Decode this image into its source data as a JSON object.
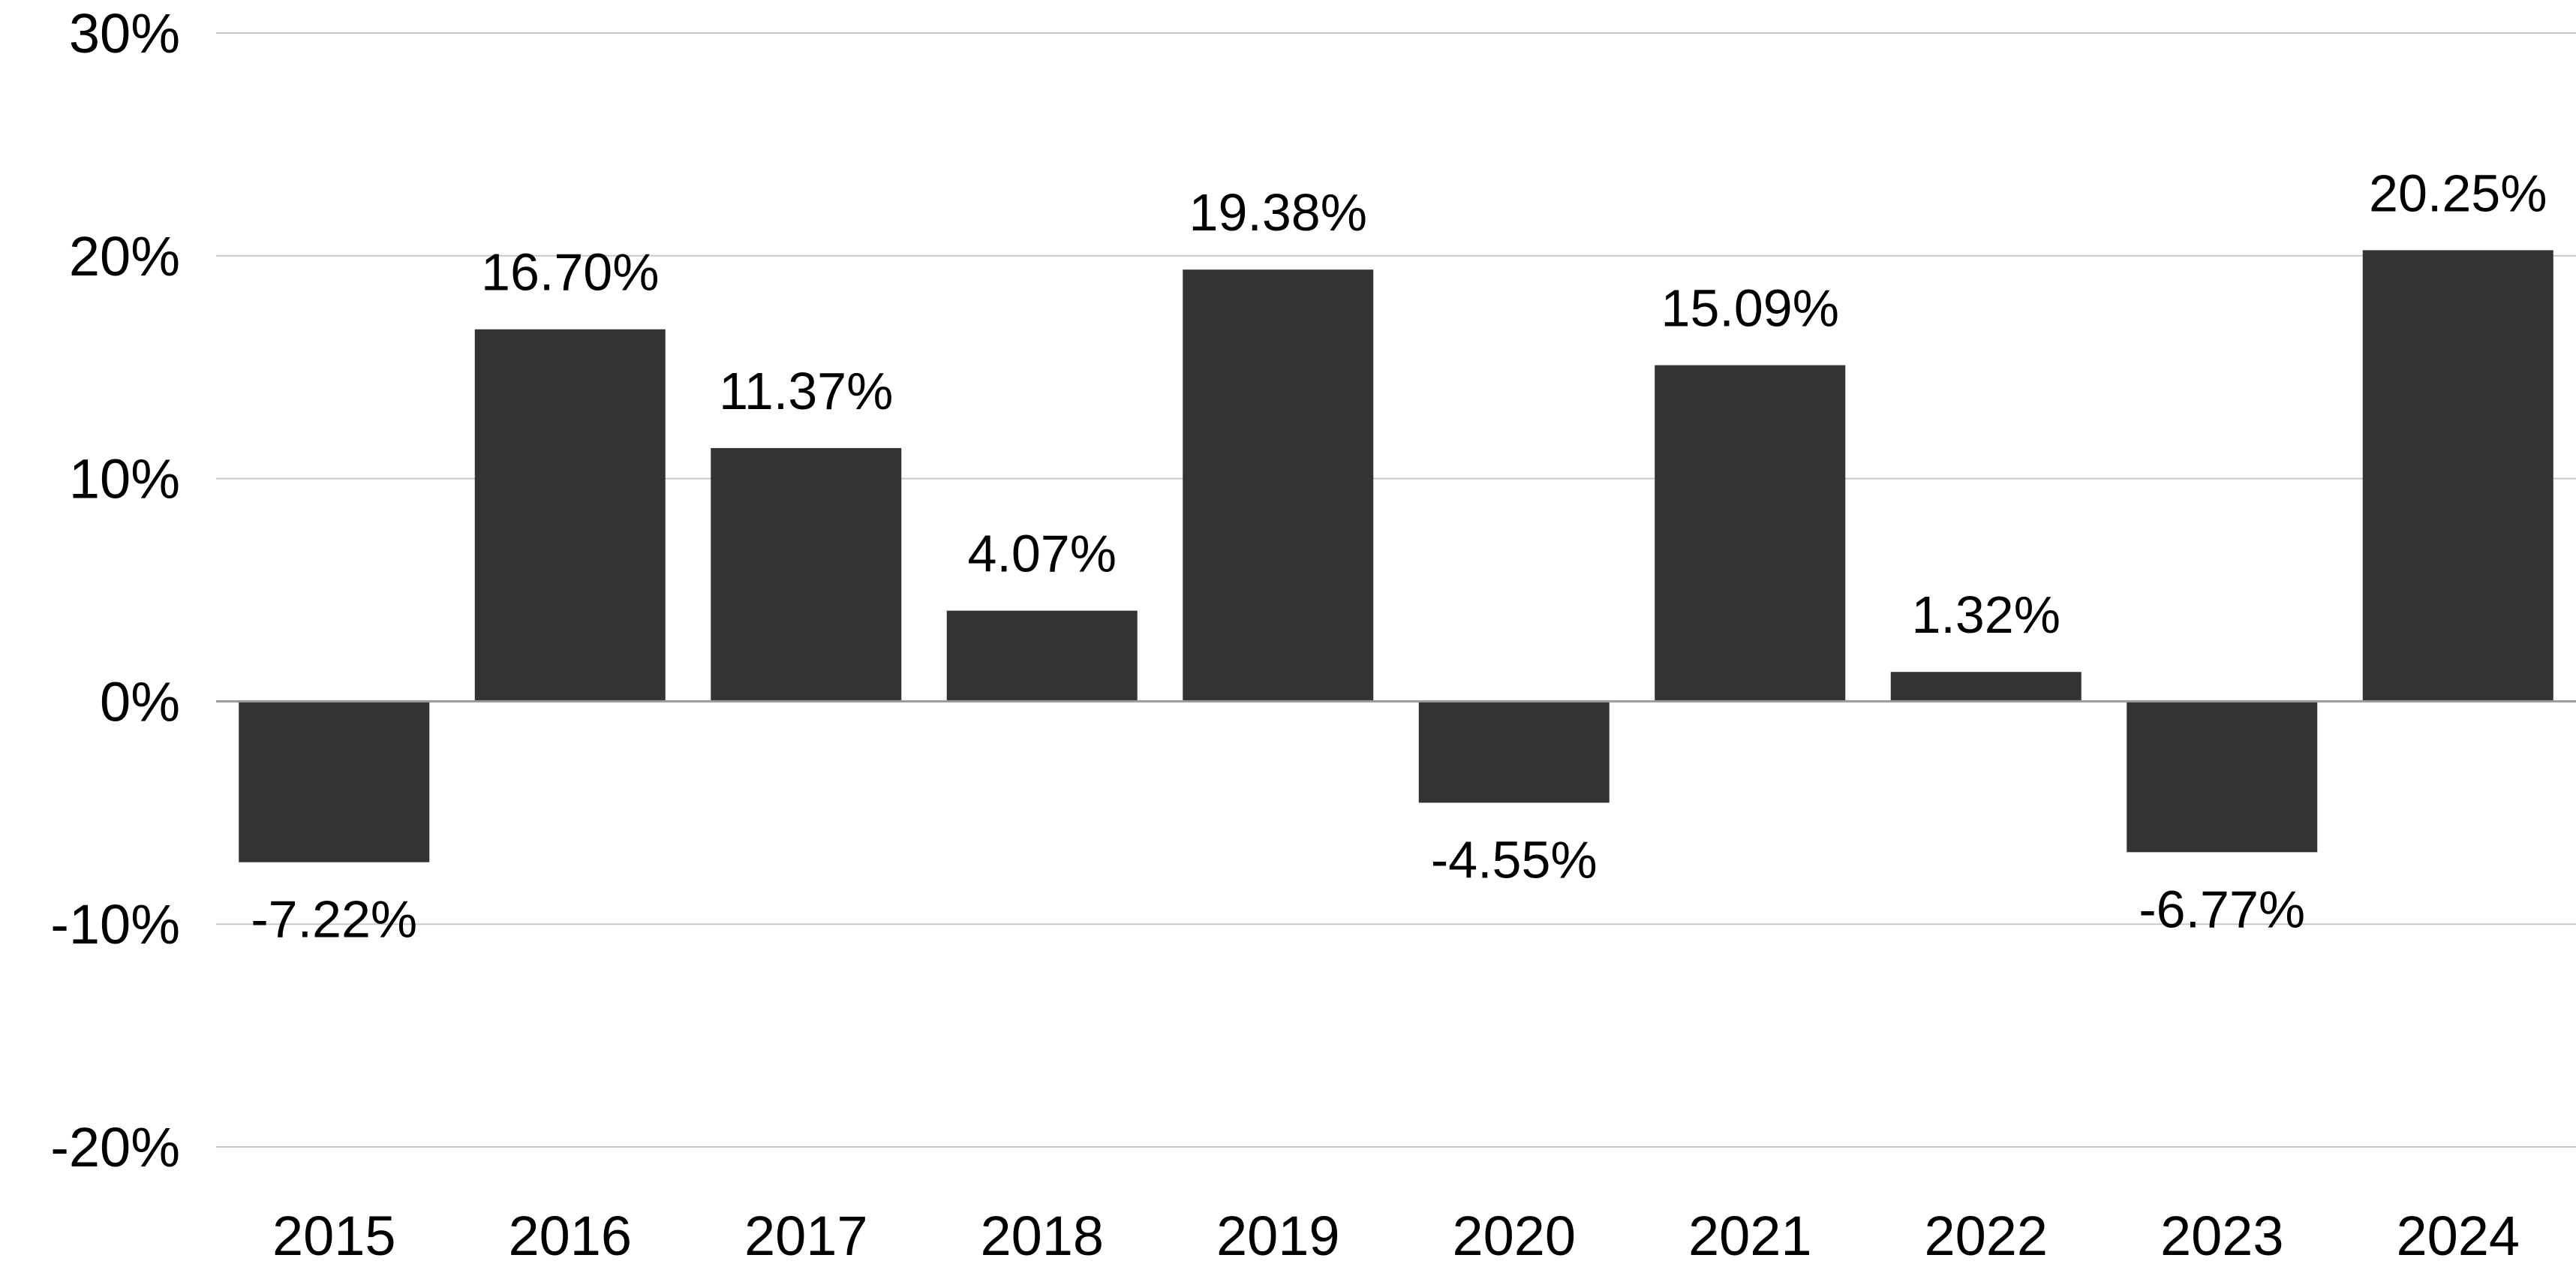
{
  "chart_data": {
    "type": "bar",
    "title": "",
    "xlabel": "",
    "ylabel": "",
    "categories": [
      "2015",
      "2016",
      "2017",
      "2018",
      "2019",
      "2020",
      "2021",
      "2022",
      "2023",
      "2024"
    ],
    "series": [
      {
        "values": [
          -7.22,
          16.7,
          11.37,
          4.07,
          19.38,
          -4.55,
          15.09,
          1.32,
          -6.77,
          20.25
        ]
      }
    ],
    "data_labels": [
      "-7.22%",
      "16.70%",
      "11.37%",
      "4.07%",
      "19.38%",
      "-4.55%",
      "15.09%",
      "1.32%",
      "-6.77%",
      "20.25%"
    ],
    "ylim": [
      -20,
      30
    ],
    "yticks": [
      30,
      20,
      10,
      0,
      -10,
      -20
    ],
    "ytick_labels": [
      "30%",
      "20%",
      "10%",
      "0%",
      "-10%",
      "-20%"
    ],
    "grid": true,
    "legend": "none",
    "colors": {
      "bar": "#333333",
      "grid": "#c8c8c8",
      "zero_line": "#9a9a9a",
      "text": "#000000"
    }
  }
}
